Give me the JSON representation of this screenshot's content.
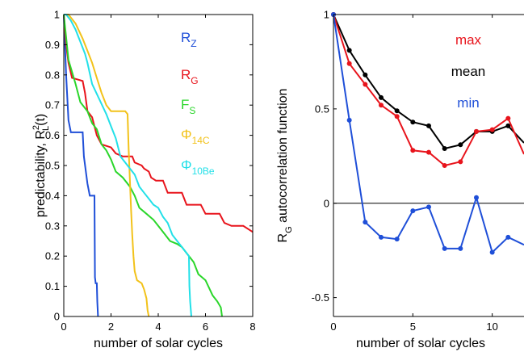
{
  "chart_data": [
    {
      "type": "line",
      "xlabel": "number of solar cycles",
      "ylabel": {
        "text": "predictability, R",
        "sup": "2",
        "sub": "L",
        "tail": "(t)"
      },
      "xlim": [
        0,
        8
      ],
      "ylim": [
        0,
        1
      ],
      "xticks": [
        "0",
        "2",
        "4",
        "6",
        "8"
      ],
      "yticks": [
        "0",
        "0.1",
        "0.2",
        "0.3",
        "0.4",
        "0.5",
        "0.6",
        "0.7",
        "0.8",
        "0.9",
        "1"
      ],
      "grid": false,
      "legend_position": "right",
      "series": [
        {
          "name": "R_Z",
          "label": {
            "main": "R",
            "sub": "Z"
          },
          "color": "#1f4fd8",
          "points": [
            [
              0,
              1
            ],
            [
              0.1,
              0.8
            ],
            [
              0.2,
              0.65
            ],
            [
              0.3,
              0.61
            ],
            [
              0.8,
              0.61
            ],
            [
              0.85,
              0.53
            ],
            [
              1.0,
              0.44
            ],
            [
              1.1,
              0.4
            ],
            [
              1.3,
              0.4
            ],
            [
              1.32,
              0.13
            ],
            [
              1.35,
              0.11
            ],
            [
              1.4,
              0.11
            ],
            [
              1.42,
              0.05
            ],
            [
              1.45,
              0.0
            ]
          ]
        },
        {
          "name": "R_G",
          "label": {
            "main": "R",
            "sub": "G"
          },
          "color": "#e8141c",
          "points": [
            [
              0,
              1
            ],
            [
              0.1,
              0.9
            ],
            [
              0.2,
              0.84
            ],
            [
              0.35,
              0.79
            ],
            [
              0.8,
              0.78
            ],
            [
              0.9,
              0.74
            ],
            [
              1.0,
              0.68
            ],
            [
              1.2,
              0.66
            ],
            [
              1.4,
              0.6
            ],
            [
              1.6,
              0.57
            ],
            [
              2.0,
              0.56
            ],
            [
              2.2,
              0.54
            ],
            [
              2.5,
              0.53
            ],
            [
              2.9,
              0.53
            ],
            [
              3.0,
              0.51
            ],
            [
              3.3,
              0.5
            ],
            [
              3.4,
              0.49
            ],
            [
              3.6,
              0.48
            ],
            [
              3.7,
              0.46
            ],
            [
              3.9,
              0.45
            ],
            [
              4.2,
              0.45
            ],
            [
              4.4,
              0.41
            ],
            [
              5.0,
              0.41
            ],
            [
              5.2,
              0.37
            ],
            [
              5.8,
              0.37
            ],
            [
              6.0,
              0.34
            ],
            [
              6.6,
              0.34
            ],
            [
              6.8,
              0.31
            ],
            [
              7.1,
              0.3
            ],
            [
              7.6,
              0.3
            ],
            [
              8.0,
              0.28
            ]
          ]
        },
        {
          "name": "F_S",
          "label": {
            "main": "F",
            "sub": "S"
          },
          "color": "#2ad62a",
          "points": [
            [
              0,
              1
            ],
            [
              0.2,
              0.85
            ],
            [
              0.5,
              0.77
            ],
            [
              0.7,
              0.71
            ],
            [
              0.8,
              0.7
            ],
            [
              1.0,
              0.68
            ],
            [
              1.2,
              0.64
            ],
            [
              1.4,
              0.62
            ],
            [
              1.6,
              0.57
            ],
            [
              1.8,
              0.55
            ],
            [
              2.0,
              0.52
            ],
            [
              2.2,
              0.48
            ],
            [
              2.5,
              0.46
            ],
            [
              2.8,
              0.43
            ],
            [
              3.0,
              0.4
            ],
            [
              3.2,
              0.36
            ],
            [
              3.5,
              0.34
            ],
            [
              3.8,
              0.32
            ],
            [
              4.0,
              0.3
            ],
            [
              4.3,
              0.27
            ],
            [
              4.5,
              0.25
            ],
            [
              4.8,
              0.24
            ],
            [
              5.0,
              0.23
            ],
            [
              5.2,
              0.21
            ],
            [
              5.5,
              0.18
            ],
            [
              5.7,
              0.14
            ],
            [
              6.0,
              0.12
            ],
            [
              6.3,
              0.07
            ],
            [
              6.5,
              0.05
            ],
            [
              6.65,
              0.03
            ],
            [
              6.7,
              0.0
            ]
          ]
        },
        {
          "name": "Phi_14C",
          "label": {
            "main": "Φ",
            "sub": "14C"
          },
          "color": "#f2c21a",
          "points": [
            [
              0,
              1
            ],
            [
              0.2,
              1.0
            ],
            [
              0.5,
              0.97
            ],
            [
              0.8,
              0.92
            ],
            [
              1.0,
              0.88
            ],
            [
              1.2,
              0.84
            ],
            [
              1.4,
              0.79
            ],
            [
              1.6,
              0.74
            ],
            [
              1.8,
              0.7
            ],
            [
              2.0,
              0.68
            ],
            [
              2.6,
              0.68
            ],
            [
              2.7,
              0.67
            ],
            [
              2.75,
              0.55
            ],
            [
              2.8,
              0.45
            ],
            [
              2.85,
              0.35
            ],
            [
              2.9,
              0.27
            ],
            [
              2.95,
              0.2
            ],
            [
              3.0,
              0.15
            ],
            [
              3.1,
              0.12
            ],
            [
              3.3,
              0.11
            ],
            [
              3.4,
              0.09
            ],
            [
              3.5,
              0.06
            ],
            [
              3.55,
              0.02
            ],
            [
              3.6,
              0.0
            ]
          ]
        },
        {
          "name": "Phi_10Be",
          "label": {
            "main": "Φ",
            "sub": "10Be"
          },
          "color": "#22e0e8",
          "points": [
            [
              0,
              1
            ],
            [
              0.1,
              1.0
            ],
            [
              0.3,
              0.98
            ],
            [
              0.5,
              0.95
            ],
            [
              0.7,
              0.91
            ],
            [
              0.9,
              0.87
            ],
            [
              1.0,
              0.84
            ],
            [
              1.2,
              0.77
            ],
            [
              1.5,
              0.72
            ],
            [
              1.8,
              0.67
            ],
            [
              2.0,
              0.63
            ],
            [
              2.2,
              0.59
            ],
            [
              2.4,
              0.53
            ],
            [
              2.7,
              0.5
            ],
            [
              3.0,
              0.47
            ],
            [
              3.2,
              0.43
            ],
            [
              3.4,
              0.41
            ],
            [
              3.6,
              0.39
            ],
            [
              3.8,
              0.37
            ],
            [
              4.0,
              0.36
            ],
            [
              4.2,
              0.33
            ],
            [
              4.4,
              0.31
            ],
            [
              4.6,
              0.27
            ],
            [
              4.8,
              0.25
            ],
            [
              5.0,
              0.23
            ],
            [
              5.2,
              0.21
            ],
            [
              5.3,
              0.2
            ],
            [
              5.32,
              0.1
            ],
            [
              5.35,
              0.05
            ],
            [
              5.4,
              0.0
            ]
          ]
        }
      ]
    },
    {
      "type": "line",
      "xlabel": "number of solar cycles",
      "ylabel": {
        "text": "R",
        "sub": "G",
        "tail": " autocorrelation function"
      },
      "xlim": [
        0,
        12
      ],
      "ylim": [
        -0.6,
        1
      ],
      "xticks": [
        "0",
        "5",
        "10"
      ],
      "yticks": [
        "-0.5",
        "0",
        "0.5",
        "1"
      ],
      "grid": false,
      "zero_line": true,
      "legend_position": "top-right",
      "series": [
        {
          "name": "max",
          "color": "#e8141c",
          "x": [
            0,
            1,
            2,
            3,
            4,
            5,
            6,
            7,
            8,
            9,
            10,
            11,
            12
          ],
          "y": [
            1.0,
            0.74,
            0.63,
            0.52,
            0.46,
            0.28,
            0.27,
            0.2,
            0.22,
            0.38,
            0.39,
            0.45,
            0.26
          ]
        },
        {
          "name": "mean",
          "color": "#000000",
          "x": [
            0,
            1,
            2,
            3,
            4,
            5,
            6,
            7,
            8,
            9,
            10,
            11,
            12
          ],
          "y": [
            1.0,
            0.81,
            0.68,
            0.56,
            0.49,
            0.43,
            0.41,
            0.29,
            0.31,
            0.38,
            0.38,
            0.41,
            0.32
          ]
        },
        {
          "name": "min",
          "color": "#1f4fd8",
          "x": [
            0,
            1,
            2,
            3,
            4,
            5,
            6,
            7,
            8,
            9,
            10,
            11,
            12
          ],
          "y": [
            1.0,
            0.44,
            -0.1,
            -0.18,
            -0.19,
            -0.04,
            -0.02,
            -0.24,
            -0.24,
            0.03,
            -0.26,
            -0.18,
            -0.22
          ]
        }
      ]
    }
  ]
}
